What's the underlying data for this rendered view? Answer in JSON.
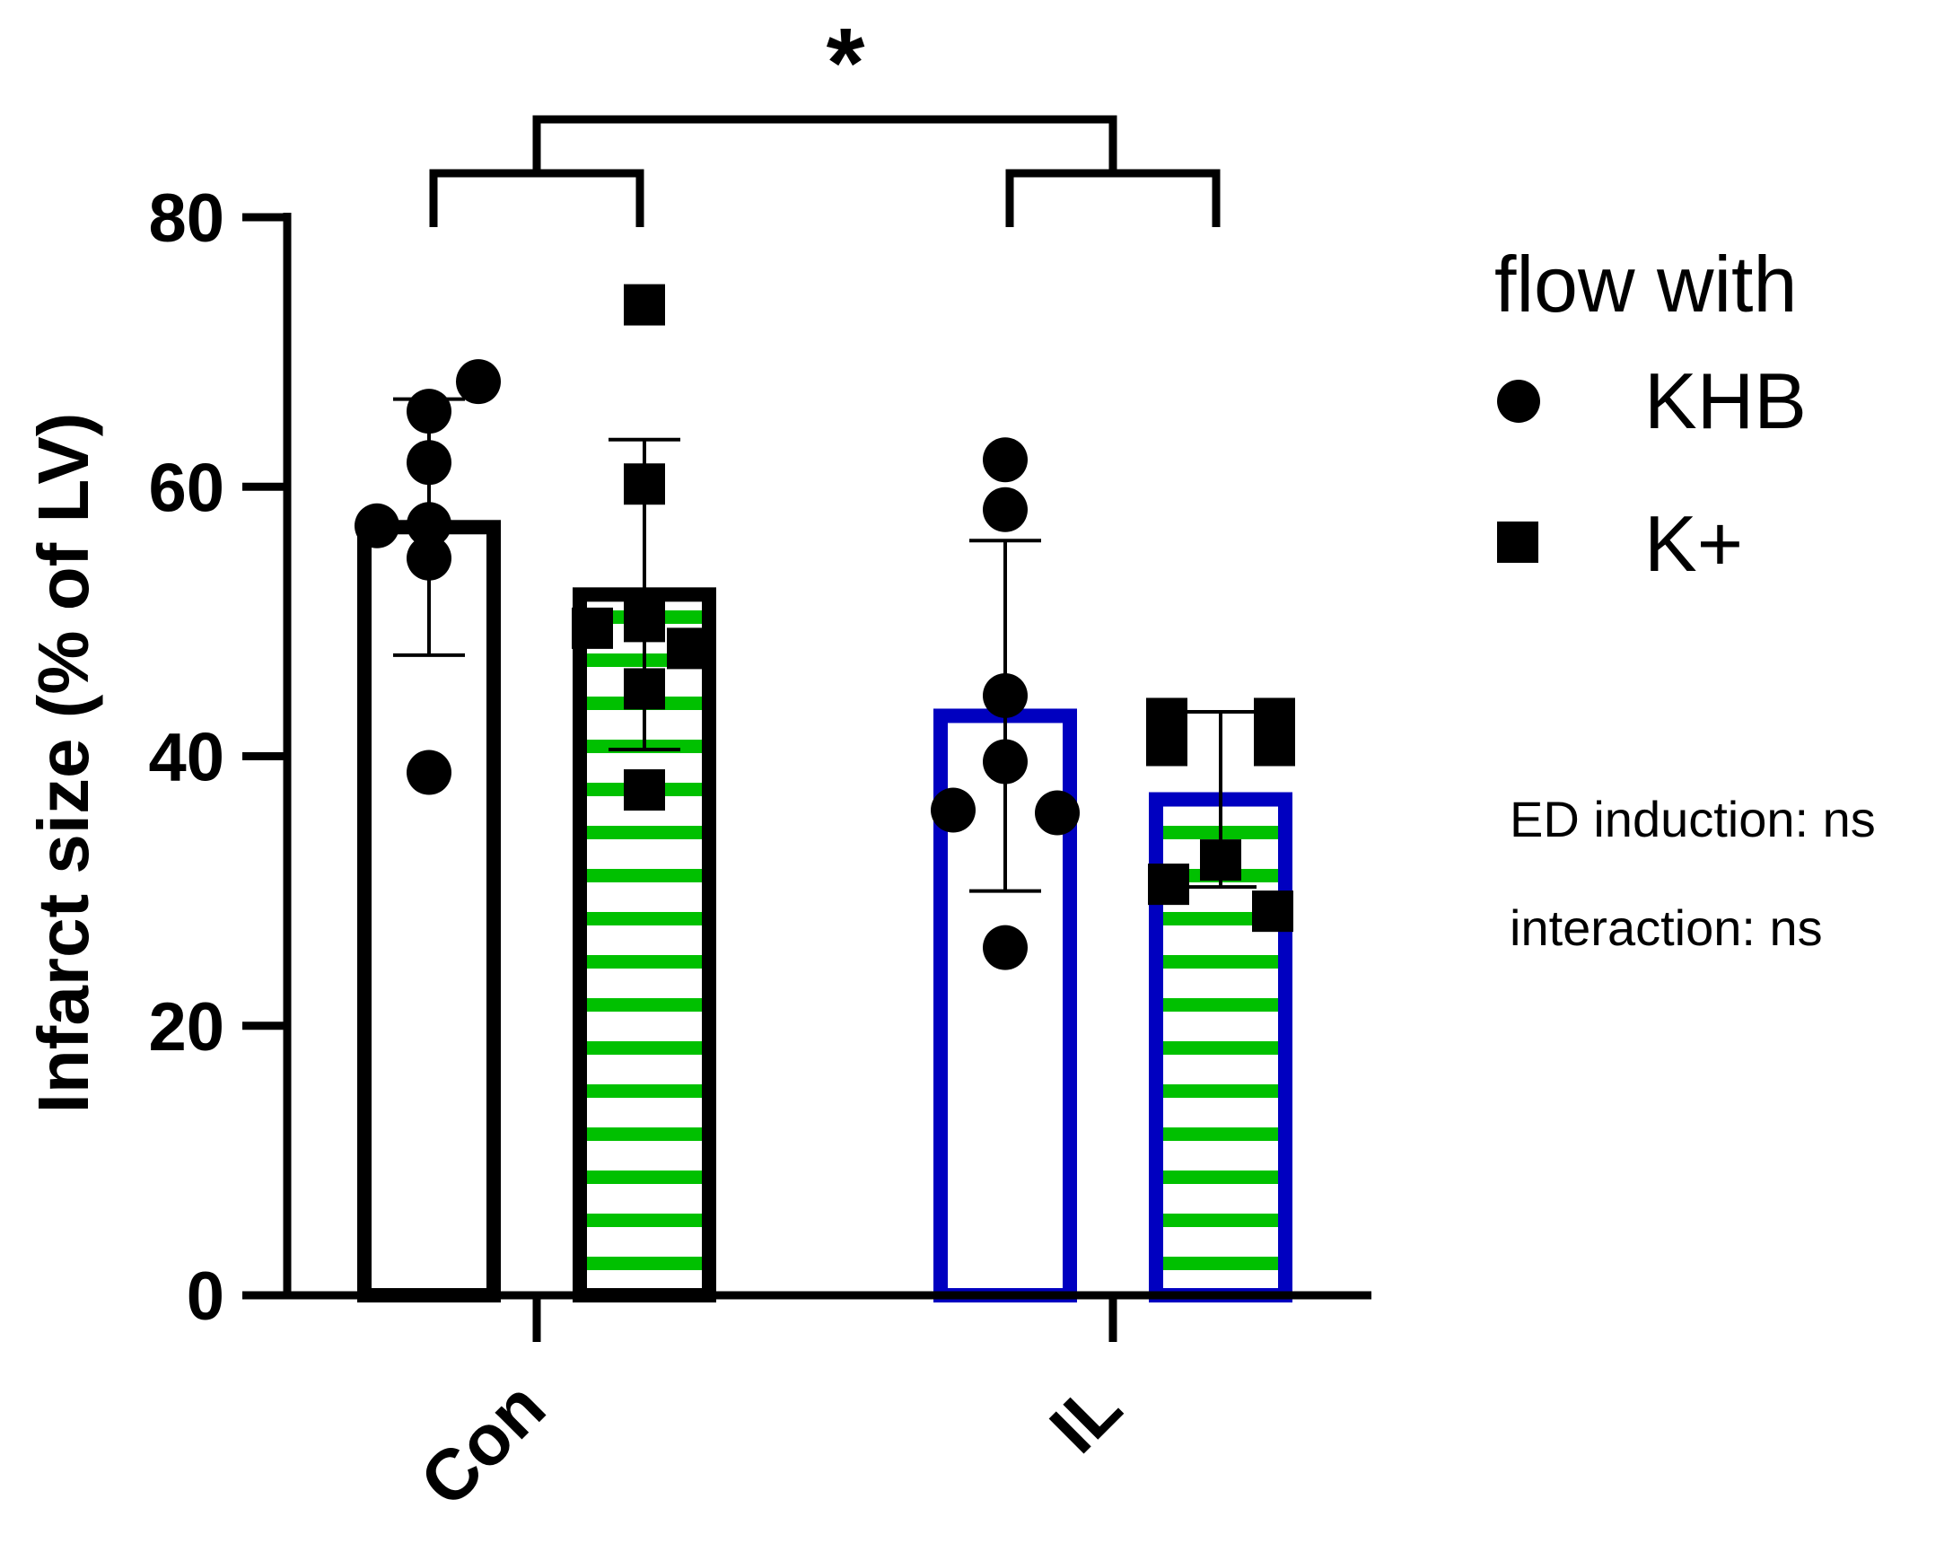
{
  "chart_data": {
    "type": "bar",
    "ylabel": "Infarct size (% of LV)",
    "xlabel": "",
    "ylim": [
      0,
      80
    ],
    "yticks": [
      0,
      20,
      40,
      60,
      80
    ],
    "categories": [
      "Con",
      "IL"
    ],
    "significance_mark": "*",
    "legend": {
      "title": "flow with",
      "position": "right",
      "entries": [
        {
          "label": "KHB",
          "marker": "circle"
        },
        {
          "label": "K+",
          "marker": "square"
        }
      ]
    },
    "annotations": [
      "ED induction: ns",
      "interaction: ns"
    ],
    "series": [
      {
        "name": "KHB",
        "marker": "circle",
        "fill": "none",
        "values": [
          57,
          43
        ],
        "sd": [
          9.5,
          13
        ],
        "outline_colors": [
          "#000000",
          "#0000c0"
        ],
        "points": [
          [
            67.8,
            65.6,
            61.8,
            57.1,
            57.2,
            54.7,
            38.8
          ],
          [
            62.0,
            58.3,
            44.5,
            39.6,
            36.0,
            35.8,
            25.8
          ]
        ]
      },
      {
        "name": "K+",
        "marker": "square",
        "fill": "stripes",
        "values": [
          52,
          36.8
        ],
        "sd": [
          11.5,
          6.5
        ],
        "outline_colors": [
          "#000000",
          "#0000c0"
        ],
        "stripe_color": "#00c000",
        "points": [
          [
            73.5,
            60.2,
            49.5,
            50.0,
            48.0,
            45.0,
            37.5
          ],
          [
            42.8,
            40.8,
            42.8,
            40.8,
            32.3,
            30.5,
            28.5
          ]
        ]
      }
    ]
  }
}
